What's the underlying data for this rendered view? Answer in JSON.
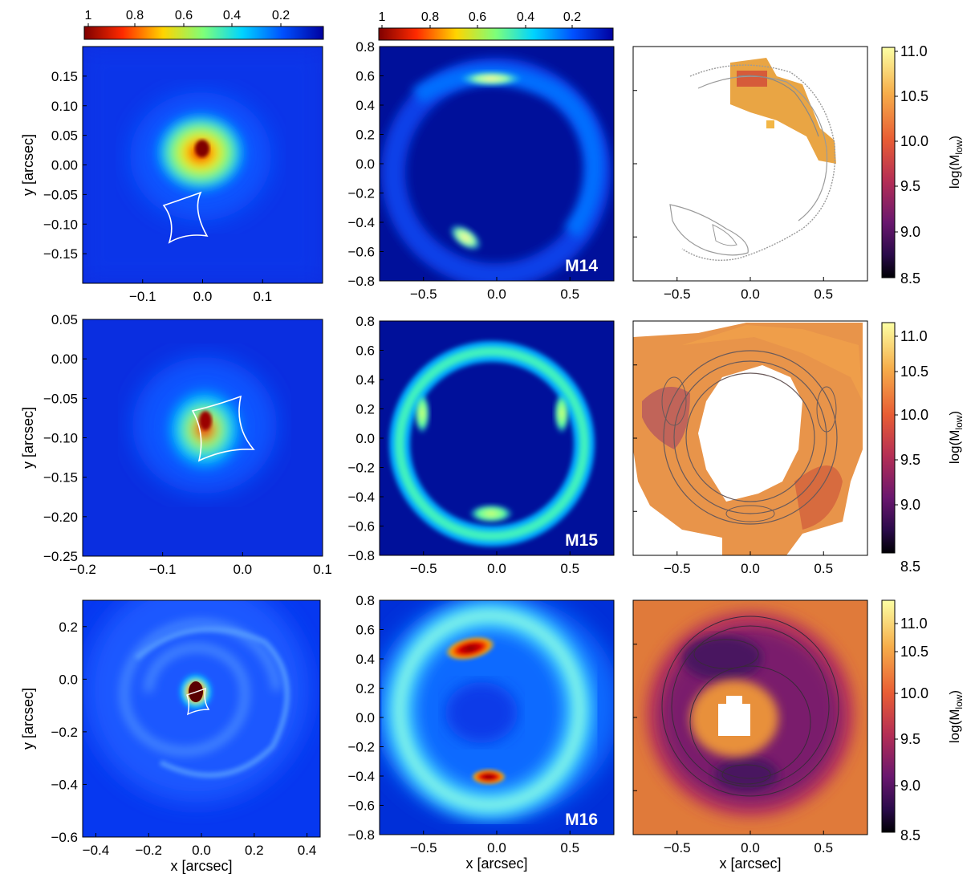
{
  "figure": {
    "panel_labels": [
      "M14",
      "M15",
      "M16"
    ]
  },
  "colorbars": {
    "source": {
      "ticks": [
        "1",
        "0.8",
        "0.6",
        "0.4",
        "0.2"
      ],
      "colors": [
        "#7f0000",
        "#ff2a00",
        "#ffd400",
        "#7dff7a",
        "#00d4ff",
        "#0050ff",
        "#00009f"
      ]
    },
    "mass": {
      "ticks": [
        "11.0",
        "10.5",
        "10.0",
        "9.5",
        "9.0",
        "8.5"
      ],
      "label_prefix": "log(M",
      "label_sub": "low",
      "label_suffix": ")",
      "colors": [
        "#fcffa4",
        "#f6ad4a",
        "#e85d34",
        "#b42e55",
        "#6a176e",
        "#2a0a4a",
        "#000004"
      ]
    }
  },
  "chart_data": [
    {
      "type": "heatmap",
      "id": "source_M14",
      "panel_label": "",
      "xlabel": "",
      "ylabel": "y [arcsec]",
      "xlim": [
        -0.2,
        0.2
      ],
      "ylim": [
        -0.2,
        0.2
      ],
      "xticks": [
        "-0.1",
        "0.0",
        "0.1"
      ],
      "yticks": [
        "0.15",
        "0.10",
        "0.05",
        "0.00",
        "-0.05",
        "-0.10",
        "-0.15"
      ],
      "xtick_values": [
        -0.1,
        0.0,
        0.1
      ],
      "ytick_values": [
        0.15,
        0.1,
        0.05,
        0.0,
        -0.05,
        -0.1,
        -0.15
      ],
      "peak": [
        0.0,
        0.025
      ],
      "caustic_center": [
        -0.025,
        -0.095
      ]
    },
    {
      "type": "heatmap",
      "id": "lensed_M14",
      "panel_label": "M14",
      "xlabel": "",
      "ylabel": "",
      "xlim": [
        -0.8,
        0.8
      ],
      "ylim": [
        -0.8,
        0.8
      ],
      "xticks": [
        "-0.5",
        "0.0",
        "0.5"
      ],
      "yticks": [
        "0.8",
        "0.6",
        "0.4",
        "0.2",
        "0.0",
        "-0.2",
        "-0.4",
        "-0.6",
        "-0.8"
      ],
      "xtick_values": [
        -0.5,
        0.0,
        0.5
      ],
      "ytick_values": [
        0.8,
        0.6,
        0.4,
        0.2,
        0.0,
        -0.2,
        -0.4,
        -0.6,
        -0.8
      ]
    },
    {
      "type": "heatmap",
      "id": "mass_M14",
      "panel_label": "",
      "xlabel": "",
      "ylabel": "",
      "xlim": [
        -0.8,
        0.8
      ],
      "ylim": [
        -0.8,
        0.8
      ],
      "xticks": [
        "-0.5",
        "0.0",
        "0.5"
      ],
      "yticks": [],
      "xtick_values": [
        -0.5,
        0.0,
        0.5
      ],
      "ytick_values": []
    },
    {
      "type": "heatmap",
      "id": "source_M15",
      "panel_label": "",
      "xlabel": "",
      "ylabel": "y [arcsec]",
      "xlim": [
        -0.2,
        0.1
      ],
      "ylim": [
        -0.25,
        0.05
      ],
      "xticks": [
        "-0.2",
        "-0.1",
        "0.0",
        "0.1"
      ],
      "yticks": [
        "0.05",
        "0.00",
        "-0.05",
        "-0.10",
        "-0.15",
        "-0.20",
        "-0.25"
      ],
      "xtick_values": [
        -0.2,
        -0.1,
        0.0,
        0.1
      ],
      "ytick_values": [
        0.05,
        0.0,
        -0.05,
        -0.1,
        -0.15,
        -0.2,
        -0.25
      ],
      "peak": [
        -0.05,
        -0.08
      ],
      "caustic_center": [
        -0.035,
        -0.085
      ]
    },
    {
      "type": "heatmap",
      "id": "lensed_M15",
      "panel_label": "M15",
      "xlabel": "",
      "ylabel": "",
      "xlim": [
        -0.8,
        0.8
      ],
      "ylim": [
        -0.8,
        0.8
      ],
      "xticks": [
        "-0.5",
        "0.0",
        "0.5"
      ],
      "yticks": [
        "0.8",
        "0.6",
        "0.4",
        "0.2",
        "0.0",
        "-0.2",
        "-0.4",
        "-0.6",
        "-0.8"
      ],
      "xtick_values": [
        -0.5,
        0.0,
        0.5
      ],
      "ytick_values": [
        0.8,
        0.6,
        0.4,
        0.2,
        0.0,
        -0.2,
        -0.4,
        -0.6,
        -0.8
      ]
    },
    {
      "type": "heatmap",
      "id": "mass_M15",
      "panel_label": "",
      "xlabel": "",
      "ylabel": "",
      "xlim": [
        -0.8,
        0.8
      ],
      "ylim": [
        -0.8,
        0.8
      ],
      "xticks": [
        "-0.5",
        "0.0",
        "0.5"
      ],
      "yticks": [],
      "xtick_values": [
        -0.5,
        0.0,
        0.5
      ],
      "ytick_values": []
    },
    {
      "type": "heatmap",
      "id": "source_M16",
      "panel_label": "",
      "xlabel": "x [arcsec]",
      "ylabel": "y [arcsec]",
      "xlim": [
        -0.45,
        0.45
      ],
      "ylim": [
        -0.6,
        0.3
      ],
      "xticks": [
        "-0.4",
        "-0.2",
        "0.0",
        "0.2",
        "0.4"
      ],
      "yticks": [
        "0.2",
        "0.0",
        "-0.2",
        "-0.4",
        "-0.6"
      ],
      "xtick_values": [
        -0.4,
        -0.2,
        0.0,
        0.2,
        0.4
      ],
      "ytick_values": [
        0.2,
        0.0,
        -0.2,
        -0.4,
        -0.6
      ],
      "peak": [
        -0.03,
        -0.06
      ],
      "caustic_center": [
        -0.03,
        -0.08
      ]
    },
    {
      "type": "heatmap",
      "id": "lensed_M16",
      "panel_label": "M16",
      "xlabel": "x [arcsec]",
      "ylabel": "",
      "xlim": [
        -0.8,
        0.8
      ],
      "ylim": [
        -0.8,
        0.8
      ],
      "xticks": [
        "-0.5",
        "0.0",
        "0.5"
      ],
      "yticks": [
        "0.8",
        "0.6",
        "0.4",
        "0.2",
        "0.0",
        "-0.2",
        "-0.4",
        "-0.6",
        "-0.8"
      ],
      "xtick_values": [
        -0.5,
        0.0,
        0.5
      ],
      "ytick_values": [
        0.8,
        0.6,
        0.4,
        0.2,
        0.0,
        -0.2,
        -0.4,
        -0.6,
        -0.8
      ]
    },
    {
      "type": "heatmap",
      "id": "mass_M16",
      "panel_label": "",
      "xlabel": "x [arcsec]",
      "ylabel": "",
      "xlim": [
        -0.8,
        0.8
      ],
      "ylim": [
        -0.8,
        0.8
      ],
      "xticks": [
        "-0.5",
        "0.0",
        "0.5"
      ],
      "yticks": [],
      "xtick_values": [
        -0.5,
        0.0,
        0.5
      ],
      "ytick_values": []
    }
  ]
}
